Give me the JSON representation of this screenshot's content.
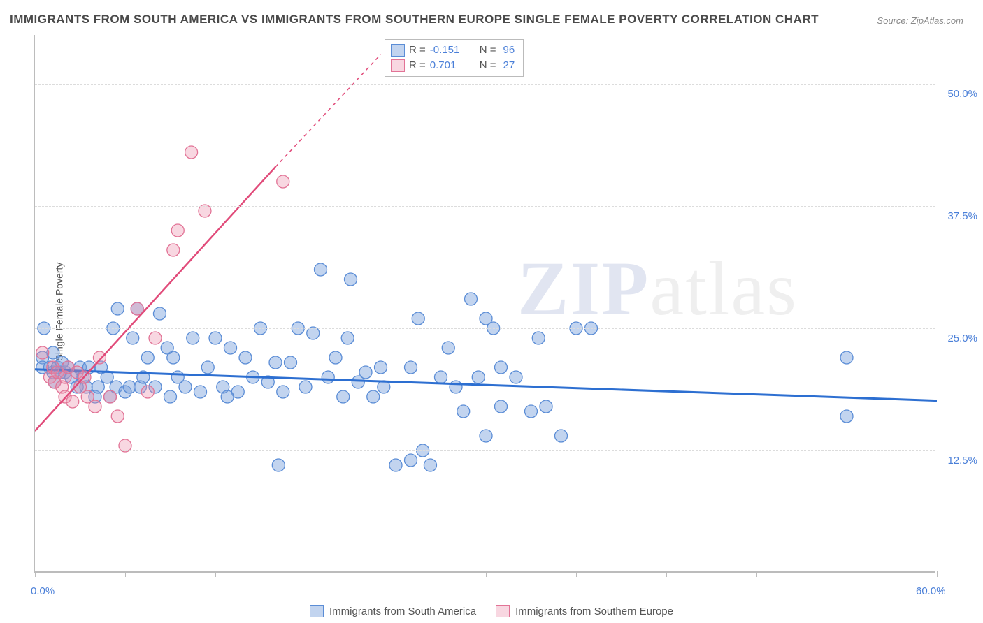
{
  "title": "IMMIGRANTS FROM SOUTH AMERICA VS IMMIGRANTS FROM SOUTHERN EUROPE SINGLE FEMALE POVERTY CORRELATION CHART",
  "source_label": "Source:",
  "source_name": "ZipAtlas.com",
  "ylabel": "Single Female Poverty",
  "watermark_a": "ZIP",
  "watermark_b": "atlas",
  "chart": {
    "type": "scatter",
    "xlim": [
      0,
      60
    ],
    "ylim": [
      0,
      55
    ],
    "x_tick_positions": [
      0,
      6,
      12,
      18,
      24,
      30,
      36,
      42,
      48,
      54,
      60
    ],
    "x_labeled_ticks": {
      "0": "0.0%",
      "60": "60.0%"
    },
    "y_grid": [
      12.5,
      25.0,
      37.5,
      50.0
    ],
    "y_labels": [
      "12.5%",
      "25.0%",
      "37.5%",
      "50.0%"
    ],
    "background_color": "#ffffff",
    "grid_color": "#dcdcdc",
    "axis_color": "#bcbcbc",
    "tick_label_color": "#4a7fd8",
    "series": [
      {
        "name": "Immigrants from South America",
        "color_fill": "rgba(120,160,220,0.45)",
        "color_stroke": "#5b8dd6",
        "marker_radius": 9,
        "R": -0.151,
        "N": 96,
        "trend": {
          "x1": 0,
          "y1": 20.8,
          "x2": 60,
          "y2": 17.6,
          "color": "#2d6fd1",
          "width": 3
        },
        "points": [
          [
            0.5,
            22
          ],
          [
            0.5,
            21
          ],
          [
            0.6,
            25
          ],
          [
            1.0,
            21
          ],
          [
            1.2,
            20.5
          ],
          [
            1.2,
            22.5
          ],
          [
            1.3,
            19.5
          ],
          [
            1.5,
            21
          ],
          [
            1.7,
            20.5
          ],
          [
            1.8,
            21.5
          ],
          [
            2.0,
            20.5
          ],
          [
            2.2,
            21
          ],
          [
            2.4,
            20
          ],
          [
            2.8,
            19
          ],
          [
            3.0,
            21
          ],
          [
            3.2,
            20
          ],
          [
            3.4,
            19
          ],
          [
            3.6,
            21
          ],
          [
            4.0,
            18
          ],
          [
            4.2,
            19
          ],
          [
            4.4,
            21
          ],
          [
            4.8,
            20
          ],
          [
            5.0,
            18
          ],
          [
            5.2,
            25
          ],
          [
            5.4,
            19
          ],
          [
            5.5,
            27
          ],
          [
            6.0,
            18.5
          ],
          [
            6.3,
            19
          ],
          [
            6.5,
            24
          ],
          [
            6.8,
            27
          ],
          [
            7.0,
            19
          ],
          [
            7.2,
            20
          ],
          [
            7.5,
            22
          ],
          [
            8.0,
            19
          ],
          [
            8.3,
            26.5
          ],
          [
            9.0,
            18
          ],
          [
            9.2,
            22
          ],
          [
            9.5,
            20
          ],
          [
            10.0,
            19
          ],
          [
            10.5,
            24
          ],
          [
            11.0,
            18.5
          ],
          [
            11.5,
            21
          ],
          [
            12.0,
            24
          ],
          [
            12.5,
            19
          ],
          [
            13.0,
            23
          ],
          [
            13.5,
            18.5
          ],
          [
            14.0,
            22
          ],
          [
            14.5,
            20
          ],
          [
            15.0,
            25
          ],
          [
            15.5,
            19.5
          ],
          [
            16.0,
            21.5
          ],
          [
            16.2,
            11
          ],
          [
            16.5,
            18.5
          ],
          [
            17.0,
            21.5
          ],
          [
            17.5,
            25
          ],
          [
            18.0,
            19
          ],
          [
            19.0,
            31
          ],
          [
            19.5,
            20
          ],
          [
            20.0,
            22
          ],
          [
            20.5,
            18
          ],
          [
            20.8,
            24
          ],
          [
            21.0,
            30
          ],
          [
            21.5,
            19.5
          ],
          [
            22.0,
            20.5
          ],
          [
            22.5,
            18
          ],
          [
            23.0,
            21
          ],
          [
            23.2,
            19
          ],
          [
            24.0,
            11
          ],
          [
            25.0,
            21
          ],
          [
            25.0,
            11.5
          ],
          [
            25.5,
            26
          ],
          [
            25.8,
            12.5
          ],
          [
            26.3,
            11
          ],
          [
            27.0,
            20
          ],
          [
            27.5,
            23
          ],
          [
            28.0,
            19
          ],
          [
            28.5,
            16.5
          ],
          [
            29.0,
            28
          ],
          [
            29.5,
            20
          ],
          [
            30.0,
            26
          ],
          [
            30.0,
            14
          ],
          [
            30.5,
            25
          ],
          [
            31.0,
            17
          ],
          [
            31.0,
            21
          ],
          [
            32.0,
            20
          ],
          [
            33.0,
            16.5
          ],
          [
            33.5,
            24
          ],
          [
            34.0,
            17
          ],
          [
            35.0,
            14
          ],
          [
            36.0,
            25
          ],
          [
            37.0,
            25
          ],
          [
            54.0,
            22
          ],
          [
            54.0,
            16
          ],
          [
            18.5,
            24.5
          ],
          [
            12.8,
            18
          ],
          [
            8.8,
            23
          ]
        ]
      },
      {
        "name": "Immigrants from Southern Europe",
        "color_fill": "rgba(235,140,170,0.35)",
        "color_stroke": "#e27396",
        "marker_radius": 9,
        "R": 0.701,
        "N": 27,
        "trend": {
          "x1": 0,
          "y1": 14.5,
          "x2": 16,
          "y2": 41.5,
          "color": "#e14b7a",
          "width": 2.5
        },
        "trend_dashed": {
          "x1": 16,
          "y1": 41.5,
          "x2": 23,
          "y2": 53
        },
        "points": [
          [
            0.5,
            22.5
          ],
          [
            1.0,
            20
          ],
          [
            1.2,
            21
          ],
          [
            1.3,
            19.5
          ],
          [
            1.5,
            20.5
          ],
          [
            1.8,
            19
          ],
          [
            2.0,
            20
          ],
          [
            2.0,
            18
          ],
          [
            2.2,
            21
          ],
          [
            2.5,
            17.5
          ],
          [
            2.8,
            20.5
          ],
          [
            3.0,
            19
          ],
          [
            3.3,
            20
          ],
          [
            3.5,
            18
          ],
          [
            4.0,
            17
          ],
          [
            4.3,
            22
          ],
          [
            5.0,
            18
          ],
          [
            5.5,
            16
          ],
          [
            6.0,
            13
          ],
          [
            6.8,
            27
          ],
          [
            7.5,
            18.5
          ],
          [
            8.0,
            24
          ],
          [
            9.2,
            33
          ],
          [
            9.5,
            35
          ],
          [
            10.4,
            43
          ],
          [
            11.3,
            37
          ],
          [
            16.5,
            40
          ]
        ]
      }
    ],
    "stats_legend": {
      "rows": [
        {
          "swatch_fill": "rgba(120,160,220,0.45)",
          "swatch_stroke": "#5b8dd6",
          "r_label": "R =",
          "r_val": "-0.151",
          "n_label": "N =",
          "n_val": "96"
        },
        {
          "swatch_fill": "rgba(235,140,170,0.35)",
          "swatch_stroke": "#e27396",
          "r_label": "R =",
          "r_val": "0.701",
          "n_label": "N =",
          "n_val": "27"
        }
      ]
    }
  }
}
